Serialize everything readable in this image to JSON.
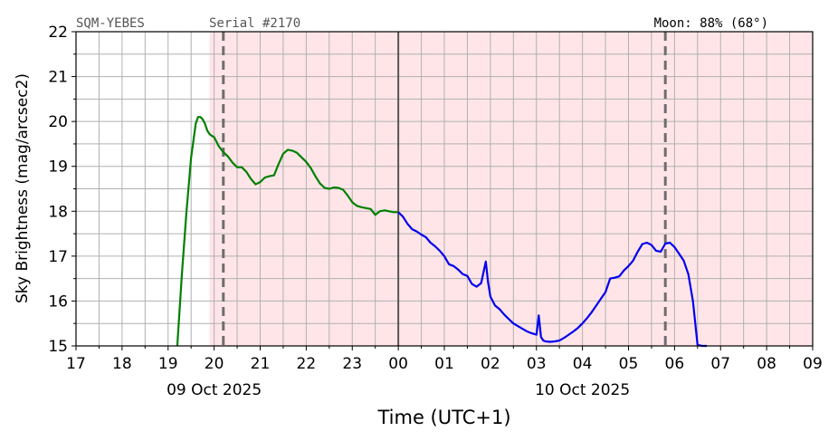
{
  "header": {
    "station": "SQM-YEBES",
    "serial": "Serial #2170",
    "moon": "Moon: 88% (68°)"
  },
  "chart_data": {
    "type": "line",
    "xlabel": "Time (UTC+1)",
    "ylabel": "Sky Brightness (mag/arcsec2)",
    "xlim": [
      17,
      33
    ],
    "ylim": [
      15,
      22
    ],
    "y_ticks": [
      "15",
      "16",
      "17",
      "18",
      "19",
      "20",
      "21",
      "22"
    ],
    "x_tick_labels": [
      "17",
      "18",
      "19",
      "20",
      "21",
      "22",
      "23",
      "00",
      "01",
      "02",
      "03",
      "04",
      "05",
      "06",
      "07",
      "08",
      "09"
    ],
    "date_labels": [
      {
        "text": "09 Oct 2025",
        "at": 20
      },
      {
        "text": "10 Oct 2025",
        "at": 28
      }
    ],
    "grid": true,
    "night_band": {
      "start": 19.9,
      "end": 33,
      "color": "#ffe5e8"
    },
    "midnight_line": 24,
    "twilight_lines": [
      20.2,
      29.8
    ],
    "series": [
      {
        "color": "#008000",
        "x": [
          19.2,
          19.3,
          19.4,
          19.5,
          19.6,
          19.65,
          19.7,
          19.75,
          19.8,
          19.85,
          19.9,
          19.95,
          20.0,
          20.05,
          20.1,
          20.15,
          20.2,
          20.3,
          20.4,
          20.5,
          20.6,
          20.7,
          20.8,
          20.9,
          21.0,
          21.1,
          21.2,
          21.3,
          21.4,
          21.5,
          21.6,
          21.7,
          21.8,
          21.9,
          22.0,
          22.1,
          22.2,
          22.3,
          22.4,
          22.5,
          22.6,
          22.7,
          22.8,
          22.9,
          23.0,
          23.1,
          23.2,
          23.3,
          23.4,
          23.5,
          23.6,
          23.7,
          23.8,
          23.9,
          24.0
        ],
        "y": [
          15.0,
          16.6,
          18.0,
          19.2,
          19.95,
          20.1,
          20.1,
          20.05,
          19.95,
          19.8,
          19.72,
          19.68,
          19.65,
          19.55,
          19.45,
          19.38,
          19.32,
          19.22,
          19.08,
          18.98,
          18.98,
          18.88,
          18.72,
          18.6,
          18.65,
          18.75,
          18.78,
          18.8,
          19.05,
          19.28,
          19.37,
          19.35,
          19.3,
          19.2,
          19.1,
          18.96,
          18.78,
          18.62,
          18.52,
          18.5,
          18.53,
          18.52,
          18.48,
          18.35,
          18.2,
          18.12,
          18.09,
          18.07,
          18.05,
          17.92,
          18.0,
          18.02,
          18.0,
          17.98,
          17.98
        ]
      },
      {
        "color": "#0000ee",
        "x": [
          24.0,
          24.1,
          24.2,
          24.3,
          24.4,
          24.5,
          24.6,
          24.7,
          24.8,
          24.9,
          25.0,
          25.1,
          25.2,
          25.3,
          25.4,
          25.5,
          25.6,
          25.7,
          25.8,
          25.9,
          25.95,
          26.0,
          26.1,
          26.2,
          26.3,
          26.4,
          26.5,
          26.6,
          26.7,
          26.8,
          26.9,
          27.0,
          27.05,
          27.1,
          27.15,
          27.2,
          27.3,
          27.4,
          27.5,
          27.6,
          27.7,
          27.8,
          27.9,
          28.0,
          28.1,
          28.2,
          28.3,
          28.4,
          28.5,
          28.6,
          28.7,
          28.8,
          28.9,
          29.0,
          29.1,
          29.2,
          29.3,
          29.4,
          29.5,
          29.6,
          29.7,
          29.8,
          29.9,
          30.0,
          30.1,
          30.2,
          30.3,
          30.4,
          30.5,
          30.6,
          30.7
        ],
        "y": [
          17.98,
          17.88,
          17.72,
          17.6,
          17.55,
          17.48,
          17.42,
          17.3,
          17.22,
          17.12,
          17.0,
          16.82,
          16.78,
          16.7,
          16.6,
          16.56,
          16.38,
          16.32,
          16.4,
          16.88,
          16.42,
          16.1,
          15.9,
          15.82,
          15.7,
          15.6,
          15.5,
          15.44,
          15.38,
          15.32,
          15.28,
          15.25,
          15.68,
          15.2,
          15.12,
          15.1,
          15.09,
          15.1,
          15.12,
          15.18,
          15.25,
          15.32,
          15.4,
          15.5,
          15.62,
          15.75,
          15.9,
          16.05,
          16.2,
          16.5,
          16.52,
          16.55,
          16.68,
          16.78,
          16.9,
          17.1,
          17.27,
          17.3,
          17.25,
          17.12,
          17.1,
          17.28,
          17.3,
          17.2,
          17.05,
          16.9,
          16.6,
          16.0,
          15.02,
          15.0,
          15.0
        ]
      }
    ]
  }
}
